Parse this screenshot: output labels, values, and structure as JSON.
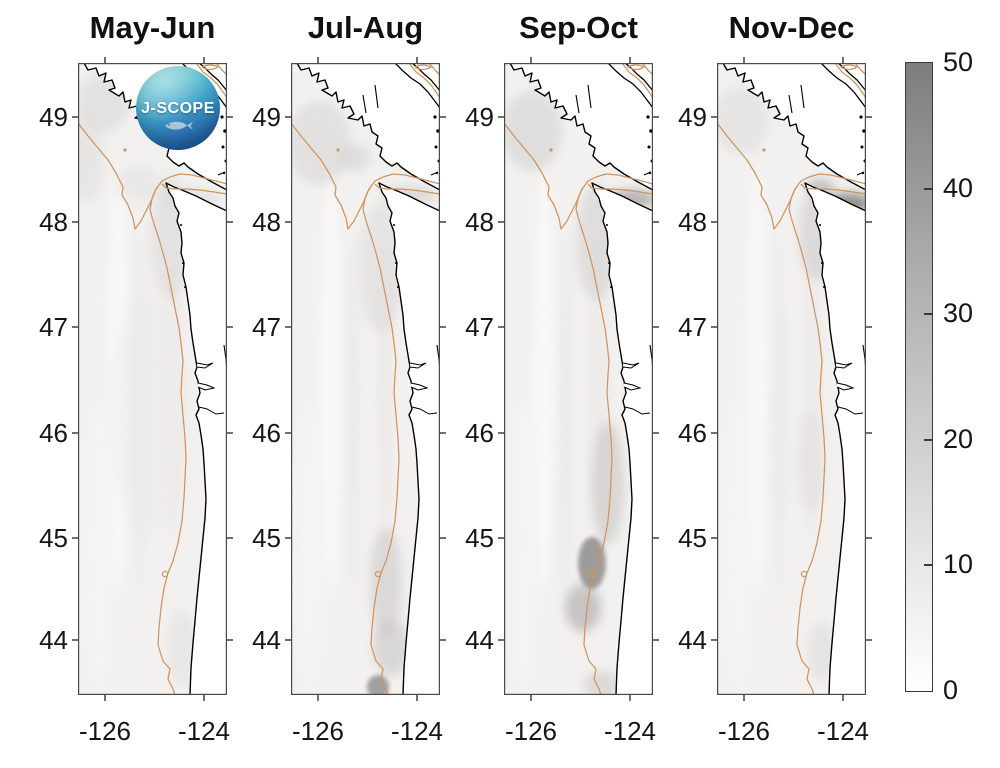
{
  "logo": {
    "text": "J-SCOPE"
  },
  "chart_data": {
    "type": "heatmap",
    "description": "Four-panel coastal ocean map figure (J-SCOPE model, Pacific Northwest shelf). Grayscale field 0-50 over the ocean, white land with black coastline, orange shelf-break isobath contour.",
    "panel_titles": [
      "May-Jun",
      "Jul-Aug",
      "Sep-Oct",
      "Nov-Dec"
    ],
    "x_axis": {
      "ticks": [
        "-126",
        "-124"
      ],
      "tick_values": [
        -126,
        -124
      ],
      "range": [
        -126.55,
        -123.45
      ]
    },
    "y_axis": {
      "ticks": [
        "49",
        "48",
        "47",
        "46",
        "45",
        "44"
      ],
      "tick_values": [
        49,
        48,
        47,
        46,
        45,
        44
      ],
      "range": [
        43.5,
        49.5
      ]
    },
    "colorbar": {
      "ticks": [
        "50",
        "40",
        "30",
        "20",
        "10",
        "0"
      ],
      "range": [
        0,
        50
      ],
      "colormap": "gray (0=white, 50=dark gray)",
      "position": "right"
    },
    "map": {
      "region": "Vancouver Island, Strait of Juan de Fuca, Washington and Oregon coast",
      "contour_color": "#cd9462",
      "coast_color": "#000000",
      "land_color": "#ffffff",
      "ocean_base_color": "#f2f1ef"
    },
    "panels": [
      {
        "title": "May-Jun",
        "blobs": [
          [
            25,
            40,
            26,
            30,
            "#d9d7d5",
            0.55,
            "soft"
          ],
          [
            8,
            95,
            18,
            45,
            "#dedcda",
            0.5,
            "soft"
          ],
          [
            92,
            175,
            20,
            62,
            "#d6d4d2",
            0.45,
            "soft"
          ],
          [
            60,
            120,
            22,
            18,
            "#dedcda",
            0.4,
            "soft"
          ],
          [
            112,
            135,
            30,
            10,
            "#d9d7d5",
            0.5,
            "soft"
          ],
          [
            104,
            585,
            14,
            38,
            "#dad8d6",
            0.4,
            "soft"
          ],
          [
            70,
            350,
            40,
            120,
            "#edebe9",
            0.5,
            "soft"
          ]
        ]
      },
      {
        "title": "Jul-Aug",
        "blobs": [
          [
            28,
            80,
            32,
            42,
            "#d6d4d2",
            0.55,
            "soft"
          ],
          [
            64,
            95,
            16,
            13,
            "#cfccca",
            0.5,
            "soft"
          ],
          [
            90,
            205,
            22,
            65,
            "#d8d6d4",
            0.45,
            "soft"
          ],
          [
            118,
            132,
            28,
            9,
            "#cfccca",
            0.6,
            "soft"
          ],
          [
            95,
            520,
            16,
            55,
            "#c9c6c4",
            0.55,
            "soft"
          ],
          [
            100,
            585,
            18,
            28,
            "#c2bfbd",
            0.5,
            "soft"
          ],
          [
            87,
            624,
            11,
            12,
            "#8f8c8a",
            0.8,
            "tight"
          ]
        ]
      },
      {
        "title": "Sep-Oct",
        "blobs": [
          [
            28,
            68,
            30,
            40,
            "#d2d0ce",
            0.55,
            "soft"
          ],
          [
            92,
            180,
            20,
            58,
            "#cfccca",
            0.5,
            "soft"
          ],
          [
            128,
            136,
            24,
            9,
            "#a39f9d",
            0.75,
            "soft"
          ],
          [
            104,
            420,
            16,
            62,
            "#c4c1bf",
            0.55,
            "soft"
          ],
          [
            79,
            545,
            18,
            24,
            "#a5a2a0",
            0.55,
            "soft"
          ],
          [
            88,
            500,
            14,
            26,
            "#8a8785",
            0.8,
            "tight"
          ],
          [
            98,
            622,
            18,
            14,
            "#c6c3c1",
            0.5,
            "soft"
          ]
        ]
      },
      {
        "title": "Nov-Dec",
        "blobs": [
          [
            24,
            58,
            28,
            34,
            "#dcdad8",
            0.5,
            "soft"
          ],
          [
            100,
            170,
            18,
            48,
            "#ccc9c7",
            0.55,
            "soft"
          ],
          [
            132,
            140,
            22,
            10,
            "#848280",
            0.85,
            "soft"
          ],
          [
            104,
            124,
            14,
            8,
            "#b3b0ae",
            0.7,
            "soft"
          ],
          [
            94,
            400,
            13,
            52,
            "#dedcda",
            0.5,
            "soft"
          ],
          [
            104,
            588,
            13,
            30,
            "#d6d4d2",
            0.45,
            "soft"
          ]
        ]
      }
    ]
  }
}
